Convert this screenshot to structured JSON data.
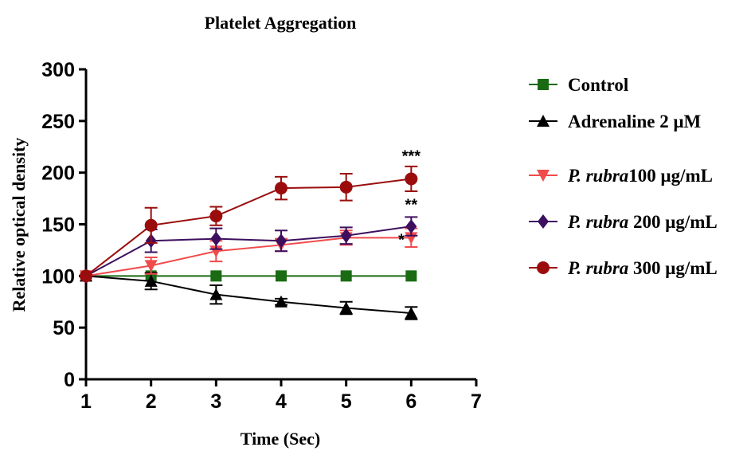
{
  "chart_data": {
    "type": "line",
    "title": "Platelet Aggregation",
    "xlabel": "Time (Sec)",
    "ylabel": "Relative optical density",
    "xlim": [
      1,
      7
    ],
    "ylim": [
      0,
      300
    ],
    "xticks": [
      "1",
      "2",
      "3",
      "4",
      "5",
      "6",
      "7"
    ],
    "yticks": [
      "0",
      "50",
      "100",
      "150",
      "200",
      "250",
      "300"
    ],
    "legend_position": "right",
    "series": [
      {
        "name": "Control",
        "legend_parts": [
          {
            "text": "Control",
            "italic": false
          }
        ],
        "color": "#1a6b14",
        "marker": "square",
        "x": [
          1,
          2,
          3,
          4,
          5,
          6
        ],
        "y": [
          100,
          100,
          100,
          100,
          100,
          100
        ],
        "err": [
          0,
          0,
          0,
          0,
          0,
          0
        ]
      },
      {
        "name": "Adrenaline 2 μM",
        "legend_parts": [
          {
            "text": "Adrenaline 2 ",
            "italic": false
          },
          {
            "text": "μM",
            "italic": false
          }
        ],
        "color": "#000000",
        "marker": "triangle-up",
        "x": [
          1,
          2,
          3,
          4,
          5,
          6
        ],
        "y": [
          100,
          95,
          82,
          75,
          69,
          64
        ],
        "err": [
          0,
          8,
          9,
          3,
          6,
          6
        ]
      },
      {
        "name": "P. rubra100 μg/mL",
        "legend_parts": [
          {
            "text": "P. rubra",
            "italic": true
          },
          {
            "text": "100 μg/mL",
            "italic": false
          }
        ],
        "color": "#f04b4b",
        "marker": "triangle-down",
        "x": [
          1,
          2,
          3,
          4,
          5,
          6
        ],
        "y": [
          100,
          110,
          124,
          130,
          137,
          137
        ],
        "err": [
          0,
          8,
          10,
          6,
          7,
          9
        ]
      },
      {
        "name": "P. rubra 200 μg/mL",
        "legend_parts": [
          {
            "text": "P. rubra ",
            "italic": true
          },
          {
            "text": "200 μg/mL",
            "italic": false
          }
        ],
        "color": "#3d0f5e",
        "marker": "diamond",
        "x": [
          1,
          2,
          3,
          4,
          5,
          6
        ],
        "y": [
          100,
          134,
          136,
          134,
          139,
          148
        ],
        "err": [
          0,
          11,
          10,
          10,
          8,
          9
        ]
      },
      {
        "name": "P. rubra 300 μg/mL",
        "legend_parts": [
          {
            "text": "P. rubra ",
            "italic": true
          },
          {
            "text": "300 μg/mL",
            "italic": false
          }
        ],
        "color": "#9b0d0d",
        "marker": "circle",
        "x": [
          1,
          2,
          3,
          4,
          5,
          6
        ],
        "y": [
          100,
          149,
          158,
          185,
          186,
          194
        ],
        "err": [
          0,
          17,
          9,
          11,
          13,
          12
        ]
      }
    ],
    "annotations": [
      {
        "text": "***",
        "x": 6,
        "y": 211
      },
      {
        "text": "**",
        "x": 6,
        "y": 164
      },
      {
        "text": "*",
        "x": 5.85,
        "y": 130
      }
    ]
  }
}
